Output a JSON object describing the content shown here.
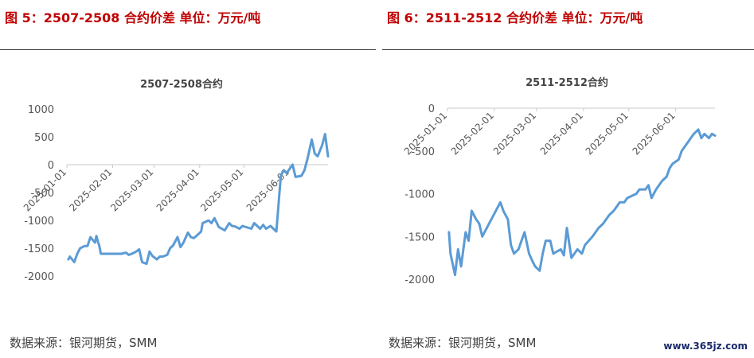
{
  "panels": [
    {
      "heading": "图 5：2507-2508 合约价差    单位：万元/吨",
      "source": "数据来源：银河期货，SMM",
      "chart_data": {
        "type": "line",
        "title": "2507-2508合约",
        "ylim": [
          -2000,
          1000
        ],
        "yticks": [
          1000,
          500,
          0,
          -500,
          -1000,
          -1500,
          -2000
        ],
        "xlabels": [
          "2025-01-01",
          "2025-02-01",
          "2025-03-01",
          "2025-04-01",
          "2025-05-01",
          "2025-06-01"
        ],
        "line_color": "#5b9bd5",
        "series": [
          {
            "x": [
              "2025-01-02",
              "2025-01-03",
              "2025-01-06",
              "2025-01-08",
              "2025-01-10",
              "2025-01-13",
              "2025-01-15",
              "2025-01-17",
              "2025-01-20",
              "2025-01-21",
              "2025-01-22",
              "2025-01-23",
              "2025-01-24",
              "2025-02-05",
              "2025-02-07",
              "2025-02-10",
              "2025-02-12",
              "2025-02-14",
              "2025-02-17",
              "2025-02-19",
              "2025-02-21",
              "2025-02-24",
              "2025-02-26",
              "2025-02-28",
              "2025-03-03",
              "2025-03-05",
              "2025-03-07",
              "2025-03-10",
              "2025-03-12",
              "2025-03-14",
              "2025-03-17",
              "2025-03-19",
              "2025-03-21",
              "2025-03-24",
              "2025-03-26",
              "2025-03-28",
              "2025-03-31",
              "2025-04-02",
              "2025-04-03",
              "2025-04-07",
              "2025-04-09",
              "2025-04-11",
              "2025-04-14",
              "2025-04-16",
              "2025-04-18",
              "2025-04-21",
              "2025-04-23",
              "2025-04-25",
              "2025-04-28",
              "2025-04-30",
              "2025-05-06",
              "2025-05-08",
              "2025-05-12",
              "2025-05-14",
              "2025-05-16",
              "2025-05-19",
              "2025-05-21",
              "2025-05-23",
              "2025-05-26",
              "2025-05-28",
              "2025-05-30",
              "2025-06-03",
              "2025-06-05",
              "2025-06-09",
              "2025-06-11",
              "2025-06-13",
              "2025-06-16",
              "2025-06-18",
              "2025-06-20",
              "2025-06-23",
              "2025-06-25",
              "2025-06-27"
            ],
            "y": [
              -1700,
              -1650,
              -1750,
              -1600,
              -1500,
              -1460,
              -1460,
              -1300,
              -1400,
              -1280,
              -1380,
              -1460,
              -1600,
              -1600,
              -1600,
              -1580,
              -1620,
              -1600,
              -1560,
              -1520,
              -1750,
              -1780,
              -1560,
              -1640,
              -1700,
              -1650,
              -1650,
              -1620,
              -1500,
              -1450,
              -1300,
              -1480,
              -1400,
              -1220,
              -1300,
              -1320,
              -1250,
              -1200,
              -1050,
              -1000,
              -1050,
              -960,
              -1120,
              -1150,
              -1180,
              -1050,
              -1100,
              -1110,
              -1150,
              -1100,
              -1150,
              -1050,
              -1150,
              -1080,
              -1150,
              -1100,
              -1150,
              -1200,
              -200,
              -100,
              -150,
              0,
              -220,
              -200,
              -100,
              100,
              450,
              200,
              150,
              350,
              550,
              150
            ]
          }
        ]
      }
    },
    {
      "heading": "图 6：2511-2512 合约价差    单位：万元/吨",
      "source": "数据来源：银河期货，SMM",
      "chart_data": {
        "type": "line",
        "title": "2511-2512合约",
        "ylim": [
          -2000,
          0
        ],
        "yticks": [
          0,
          -500,
          -1000,
          -1500,
          -2000
        ],
        "xlabels": [
          "2025-01-01",
          "2025-02-01",
          "2025-03-01",
          "2025-04-01",
          "2025-05-01",
          "2025-06-01"
        ],
        "line_color": "#5b9bd5",
        "series": [
          {
            "x": [
              "2025-01-02",
              "2025-01-03",
              "2025-01-06",
              "2025-01-08",
              "2025-01-10",
              "2025-01-13",
              "2025-01-15",
              "2025-01-17",
              "2025-01-20",
              "2025-01-22",
              "2025-01-24",
              "2025-02-05",
              "2025-02-07",
              "2025-02-10",
              "2025-02-12",
              "2025-02-14",
              "2025-02-17",
              "2025-02-19",
              "2025-02-21",
              "2025-02-24",
              "2025-02-26",
              "2025-02-28",
              "2025-03-03",
              "2025-03-05",
              "2025-03-07",
              "2025-03-10",
              "2025-03-12",
              "2025-03-14",
              "2025-03-17",
              "2025-03-19",
              "2025-03-21",
              "2025-03-24",
              "2025-03-26",
              "2025-03-28",
              "2025-03-31",
              "2025-04-02",
              "2025-04-07",
              "2025-04-09",
              "2025-04-11",
              "2025-04-14",
              "2025-04-16",
              "2025-04-18",
              "2025-04-21",
              "2025-04-23",
              "2025-04-25",
              "2025-04-28",
              "2025-04-30",
              "2025-05-06",
              "2025-05-08",
              "2025-05-12",
              "2025-05-14",
              "2025-05-16",
              "2025-05-19",
              "2025-05-21",
              "2025-05-23",
              "2025-05-26",
              "2025-05-28",
              "2025-05-30",
              "2025-06-03",
              "2025-06-05",
              "2025-06-09",
              "2025-06-11",
              "2025-06-13",
              "2025-06-16",
              "2025-06-18",
              "2025-06-20",
              "2025-06-23",
              "2025-06-25",
              "2025-06-27"
            ],
            "y": [
              -1450,
              -1700,
              -1950,
              -1650,
              -1850,
              -1450,
              -1550,
              -1200,
              -1300,
              -1350,
              -1500,
              -1100,
              -1200,
              -1300,
              -1600,
              -1700,
              -1650,
              -1550,
              -1450,
              -1700,
              -1780,
              -1850,
              -1900,
              -1700,
              -1550,
              -1550,
              -1700,
              -1680,
              -1650,
              -1720,
              -1400,
              -1750,
              -1700,
              -1650,
              -1700,
              -1600,
              -1500,
              -1450,
              -1400,
              -1350,
              -1300,
              -1250,
              -1200,
              -1150,
              -1100,
              -1100,
              -1050,
              -1000,
              -950,
              -950,
              -900,
              -1050,
              -950,
              -900,
              -850,
              -800,
              -700,
              -650,
              -600,
              -500,
              -400,
              -350,
              -300,
              -250,
              -350,
              -300,
              -350,
              -300,
              -320
            ]
          }
        ]
      }
    }
  ],
  "watermark": "www.365jz.com"
}
